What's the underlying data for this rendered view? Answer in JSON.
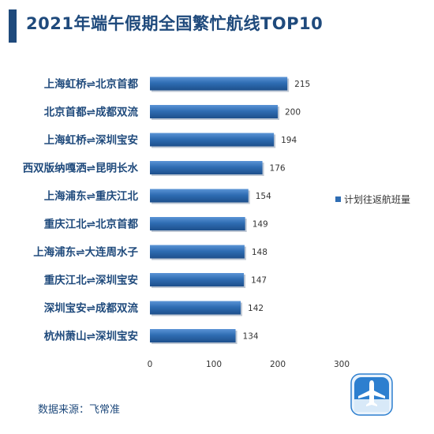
{
  "title": "2021年端午假期全国繁忙航线TOP10",
  "source": "数据来源：飞常准",
  "colors": {
    "bar": "#2f6db3",
    "title": "#1f4a7c",
    "logo": "#2d7fcf"
  },
  "chart_data": {
    "type": "bar",
    "orientation": "horizontal",
    "title": "2021年端午假期全国繁忙航线TOP10",
    "categories": [
      "上海虹桥⇌北京首都",
      "北京首都⇌成都双流",
      "上海虹桥⇌深圳宝安",
      "西双版纳嘎洒⇌昆明长水",
      "上海浦东⇌重庆江北",
      "重庆江北⇌北京首都",
      "上海浦东⇌大连周水子",
      "重庆江北⇌深圳宝安",
      "深圳宝安⇌成都双流",
      "杭州萧山⇌深圳宝安"
    ],
    "series": [
      {
        "name": "计划往返航班量",
        "values": [
          215,
          200,
          194,
          176,
          154,
          149,
          148,
          147,
          142,
          134
        ]
      }
    ],
    "xticks": [
      "0",
      "100",
      "200",
      "300"
    ],
    "xlim": [
      0,
      300
    ],
    "legend": "right",
    "grid": false
  }
}
